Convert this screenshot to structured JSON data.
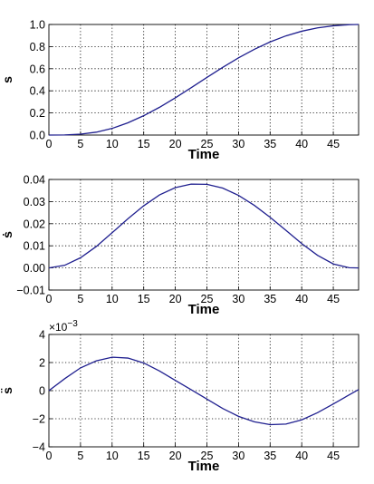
{
  "chart_data": [
    {
      "type": "line",
      "xlabel": "Time",
      "ylabel": "s",
      "xlim": [
        0,
        49
      ],
      "ylim": [
        0,
        1
      ],
      "grid": true,
      "x_ticks": [
        0,
        5,
        10,
        15,
        20,
        25,
        30,
        35,
        40,
        45
      ],
      "x_tick_labels": [
        "0",
        "5",
        "10",
        "15",
        "20",
        "25",
        "30",
        "35",
        "40",
        "45"
      ],
      "y_ticks": [
        0,
        0.2,
        0.4,
        0.6,
        0.8,
        1.0
      ],
      "y_tick_labels": [
        "0.0",
        "0.2",
        "0.4",
        "0.6",
        "0.8",
        "1.0"
      ],
      "series": [
        {
          "color": "#1f1f8f",
          "x": [
            0,
            2.5,
            5,
            7.5,
            10,
            12.5,
            15,
            17.5,
            20,
            22.5,
            25,
            27.5,
            30,
            32.5,
            35,
            37.5,
            40,
            42.5,
            45,
            47.5,
            49
          ],
          "y": [
            0,
            0.001,
            0.008,
            0.026,
            0.06,
            0.111,
            0.175,
            0.251,
            0.337,
            0.428,
            0.521,
            0.612,
            0.698,
            0.775,
            0.842,
            0.897,
            0.939,
            0.969,
            0.988,
            0.998,
            1.0
          ]
        }
      ]
    },
    {
      "type": "line",
      "xlabel": "Time",
      "ylabel": "ṡ",
      "xlim": [
        0,
        49
      ],
      "ylim": [
        -0.01,
        0.04
      ],
      "grid": true,
      "x_ticks": [
        0,
        5,
        10,
        15,
        20,
        25,
        30,
        35,
        40,
        45
      ],
      "x_tick_labels": [
        "0",
        "5",
        "10",
        "15",
        "20",
        "25",
        "30",
        "35",
        "40",
        "45"
      ],
      "y_ticks": [
        -0.01,
        0,
        0.01,
        0.02,
        0.03,
        0.04
      ],
      "y_tick_labels": [
        "−0.01",
        "0.00",
        "0.01",
        "0.02",
        "0.03",
        "0.04"
      ],
      "series": [
        {
          "color": "#1f1f8f",
          "x": [
            0,
            2.5,
            5,
            7.5,
            10,
            12.5,
            15,
            17.5,
            20,
            22.5,
            25,
            27.5,
            30,
            32.5,
            35,
            37.5,
            40,
            42.5,
            45,
            47.5,
            49
          ],
          "y": [
            0,
            0.0012,
            0.0046,
            0.0097,
            0.0159,
            0.0222,
            0.0281,
            0.033,
            0.0363,
            0.0379,
            0.0378,
            0.0361,
            0.0328,
            0.0283,
            0.0229,
            0.017,
            0.011,
            0.0057,
            0.0018,
            0.0001,
            0
          ]
        }
      ]
    },
    {
      "type": "line",
      "xlabel": "Time",
      "ylabel": "s̈",
      "y_exponent": "×10",
      "y_exponent_power": "−3",
      "xlim": [
        0,
        49
      ],
      "ylim": [
        -4,
        4
      ],
      "grid": true,
      "x_ticks": [
        0,
        5,
        10,
        15,
        20,
        25,
        30,
        35,
        40,
        45
      ],
      "x_tick_labels": [
        "0",
        "5",
        "10",
        "15",
        "20",
        "25",
        "30",
        "35",
        "40",
        "45"
      ],
      "y_ticks": [
        -4,
        -2,
        0,
        2,
        4
      ],
      "y_tick_labels": [
        "−4",
        "−2",
        "0",
        "2",
        "4"
      ],
      "series": [
        {
          "color": "#1f1f8f",
          "x": [
            0,
            2.5,
            5,
            7.5,
            10,
            12.5,
            15,
            17.5,
            20,
            22.5,
            25,
            27.5,
            30,
            32.5,
            35,
            37.5,
            40,
            42.5,
            45,
            47.5,
            49
          ],
          "y": [
            0,
            0.85,
            1.62,
            2.12,
            2.38,
            2.32,
            1.97,
            1.4,
            0.73,
            0.07,
            -0.6,
            -1.27,
            -1.83,
            -2.22,
            -2.42,
            -2.38,
            -2.08,
            -1.57,
            -0.95,
            -0.3,
            0.08
          ]
        }
      ]
    }
  ]
}
